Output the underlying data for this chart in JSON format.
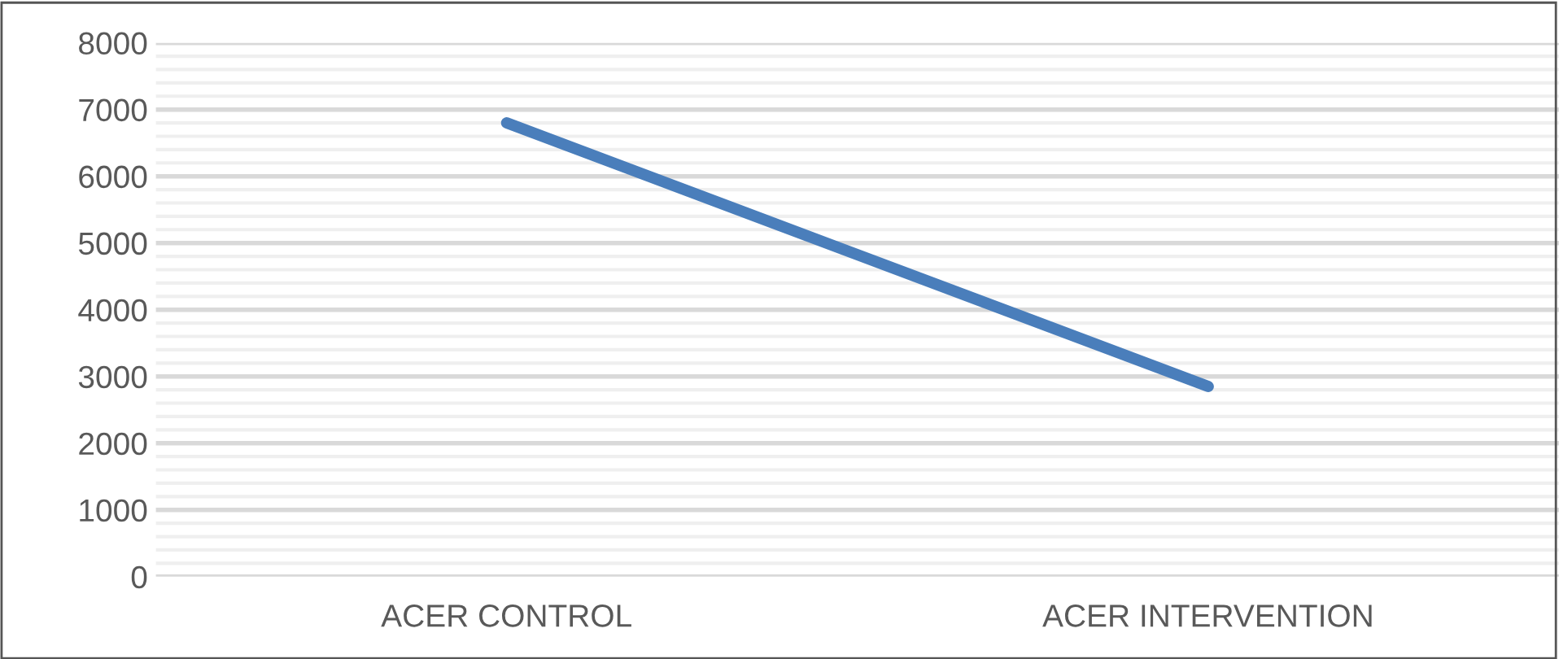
{
  "chart_data": {
    "type": "line",
    "categories": [
      "ACER CONTROL",
      "ACER INTERVENTION"
    ],
    "series": [
      {
        "color": "#4a7ebb",
        "values": [
          6800,
          2850
        ]
      }
    ],
    "ylim": [
      0,
      8000
    ],
    "yticks": [
      0,
      {
        "value": 200,
        "label": null
      },
      {
        "value": 400,
        "label": null
      },
      {
        "value": 600,
        "label": null
      },
      {
        "value": 800,
        "label": null
      },
      1000,
      {
        "value": 1200,
        "label": null
      },
      {
        "value": 1400,
        "label": null
      },
      {
        "value": 1600,
        "label": null
      },
      {
        "value": 1800,
        "label": null
      },
      2000,
      {
        "value": 2200,
        "label": null
      },
      {
        "value": 2400,
        "label": null
      },
      {
        "value": 2600,
        "label": null
      },
      {
        "value": 2800,
        "label": null
      },
      3000,
      {
        "value": 3200,
        "label": null
      },
      {
        "value": 3400,
        "label": null
      },
      {
        "value": 3600,
        "label": null
      },
      {
        "value": 3800,
        "label": null
      },
      4000,
      {
        "value": 4200,
        "label": null
      },
      {
        "value": 4400,
        "label": null
      },
      {
        "value": 4600,
        "label": null
      },
      {
        "value": 4800,
        "label": null
      },
      5000,
      {
        "value": 5200,
        "label": null
      },
      {
        "value": 5400,
        "label": null
      },
      {
        "value": 5600,
        "label": null
      },
      {
        "value": 5800,
        "label": null
      },
      6000,
      {
        "value": 6200,
        "label": null
      },
      {
        "value": 6400,
        "label": null
      },
      {
        "value": 6600,
        "label": null
      },
      {
        "value": 6800,
        "label": null
      },
      7000,
      {
        "value": 7200,
        "label": null
      },
      {
        "value": 7400,
        "label": null
      },
      {
        "value": 7600,
        "label": null
      },
      {
        "value": 7800,
        "label": null
      },
      8000
    ],
    "grid": "y",
    "legend": false,
    "marker": "none",
    "line_style": "solid"
  }
}
